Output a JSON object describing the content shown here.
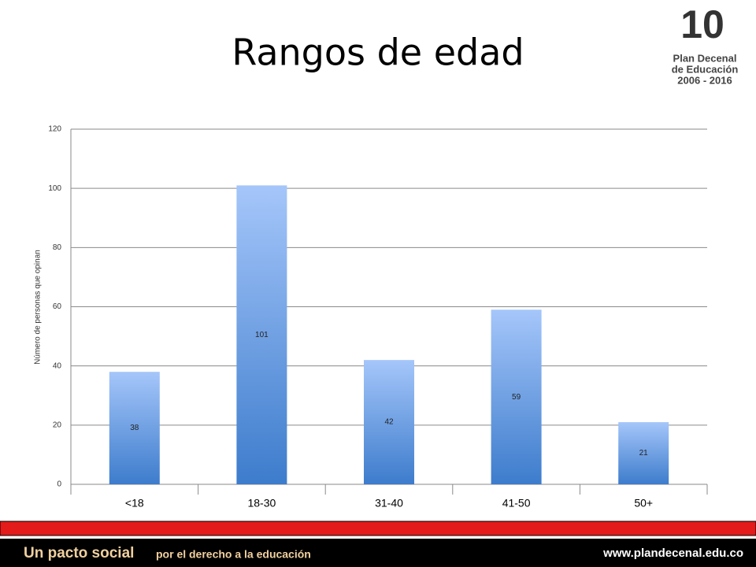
{
  "chart_data": {
    "type": "bar",
    "title": "Rangos de edad",
    "y_label": "Número de personas que opinan",
    "categories": [
      "<18",
      "18-30",
      "31-40",
      "41-50",
      "50+"
    ],
    "values": [
      38,
      101,
      42,
      59,
      21
    ],
    "color": "#4a86d8",
    "ylim": [
      0,
      120
    ],
    "yticks": [
      0,
      20,
      40,
      60,
      80,
      100,
      120
    ],
    "grid": true
  },
  "logo": {
    "number": "10",
    "line1": "Plan Decenal",
    "line2": "de Educación",
    "line3": "2006 - 2016"
  },
  "footer": {
    "slogan": "Un pacto social",
    "slogan_rest": "por el derecho a la educación",
    "url": "www.plandecenal.edu.co"
  }
}
